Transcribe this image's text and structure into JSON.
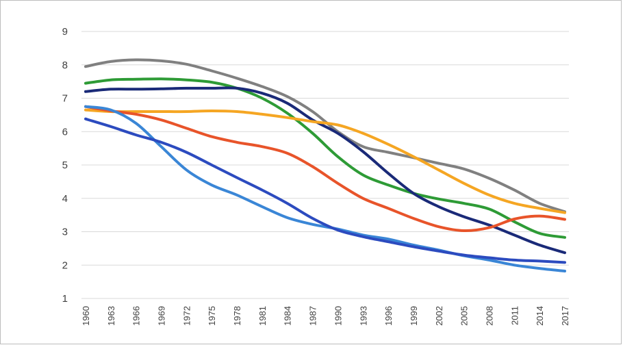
{
  "chart_data": {
    "type": "line",
    "title": "",
    "xlabel": "",
    "ylabel": "",
    "ylim": [
      1,
      9
    ],
    "yticks": [
      "1",
      "2",
      "3",
      "4",
      "5",
      "6",
      "7",
      "8",
      "9"
    ],
    "x_years": [
      1960,
      1963,
      1966,
      1969,
      1972,
      1975,
      1978,
      1981,
      1984,
      1987,
      1990,
      1993,
      1996,
      1999,
      2002,
      2005,
      2008,
      2011,
      2014,
      2017
    ],
    "xtick_labels": [
      "1960",
      "1963",
      "1966",
      "1969",
      "1972",
      "1975",
      "1978",
      "1981",
      "1984",
      "1987",
      "1990",
      "1993",
      "1996",
      "1999",
      "2002",
      "2005",
      "2008",
      "2011",
      "2014",
      "2017"
    ],
    "grid": true,
    "legend": "none",
    "series": [
      {
        "color": "#808080",
        "values": [
          7.95,
          8.1,
          8.15,
          8.12,
          8.02,
          7.82,
          7.6,
          7.35,
          7.05,
          6.6,
          6.0,
          5.55,
          5.38,
          5.22,
          5.05,
          4.88,
          4.6,
          4.25,
          3.85,
          3.6
        ]
      },
      {
        "color": "#2e9b36",
        "values": [
          7.45,
          7.55,
          7.57,
          7.58,
          7.55,
          7.48,
          7.3,
          7.0,
          6.55,
          5.95,
          5.25,
          4.7,
          4.4,
          4.15,
          3.98,
          3.85,
          3.68,
          3.3,
          2.95,
          2.83
        ]
      },
      {
        "color": "#1a2a78",
        "values": [
          7.2,
          7.27,
          7.27,
          7.28,
          7.3,
          7.3,
          7.3,
          7.15,
          6.85,
          6.35,
          5.95,
          5.4,
          4.75,
          4.15,
          3.75,
          3.45,
          3.2,
          2.9,
          2.6,
          2.37
        ]
      },
      {
        "color": "#f5a623",
        "values": [
          6.65,
          6.6,
          6.6,
          6.6,
          6.6,
          6.62,
          6.6,
          6.52,
          6.42,
          6.3,
          6.2,
          5.95,
          5.62,
          5.25,
          4.85,
          4.45,
          4.1,
          3.85,
          3.7,
          3.57
        ]
      },
      {
        "color": "#e8542a",
        "values": [
          6.75,
          6.62,
          6.52,
          6.35,
          6.1,
          5.85,
          5.68,
          5.55,
          5.35,
          4.95,
          4.45,
          4.0,
          3.7,
          3.4,
          3.15,
          3.03,
          3.12,
          3.38,
          3.47,
          3.37
        ]
      },
      {
        "color": "#3a86d6",
        "values": [
          6.75,
          6.65,
          6.25,
          5.55,
          4.85,
          4.4,
          4.1,
          3.75,
          3.42,
          3.22,
          3.08,
          2.9,
          2.78,
          2.6,
          2.45,
          2.28,
          2.15,
          2.0,
          1.9,
          1.82
        ]
      },
      {
        "color": "#2c4bbf",
        "values": [
          6.38,
          6.15,
          5.9,
          5.68,
          5.38,
          5.0,
          4.62,
          4.25,
          3.85,
          3.4,
          3.05,
          2.85,
          2.7,
          2.55,
          2.42,
          2.3,
          2.22,
          2.15,
          2.12,
          2.08
        ]
      }
    ]
  }
}
